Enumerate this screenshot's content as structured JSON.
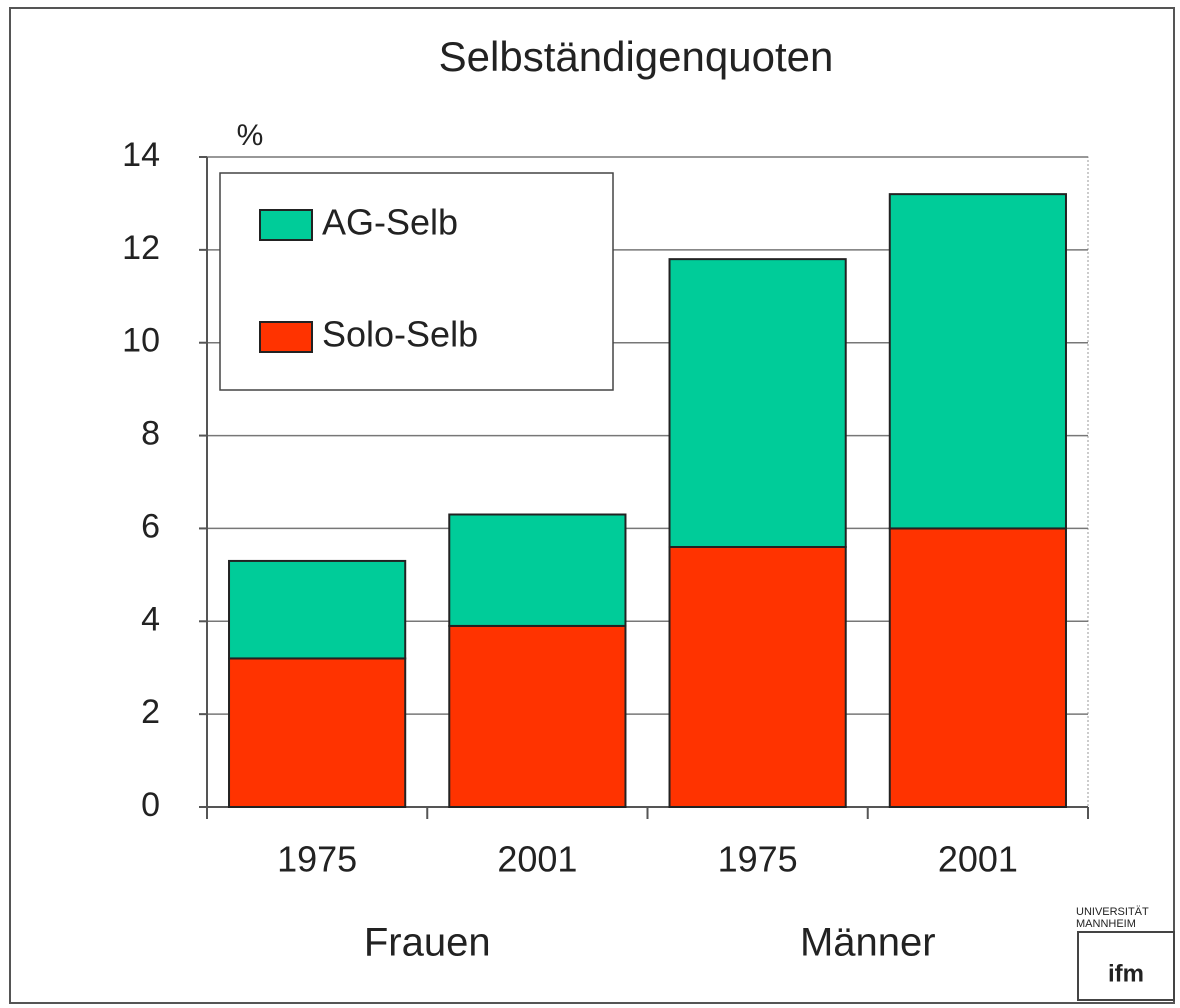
{
  "chart_data": {
    "type": "stacked_bar",
    "title": "Selbständigenquoten",
    "y_unit": "%",
    "categories": [
      "1975",
      "2001",
      "1975",
      "2001"
    ],
    "groups": [
      "Frauen",
      "Männer"
    ],
    "series": [
      {
        "name": "Solo-Selb",
        "color": "#ff3300",
        "values": [
          3.2,
          3.9,
          5.6,
          6.0
        ]
      },
      {
        "name": "AG-Selb",
        "color": "#00cc99",
        "values": [
          2.1,
          2.4,
          6.2,
          7.2
        ]
      }
    ],
    "ylim": [
      0,
      14
    ],
    "yticks": [
      0,
      2,
      4,
      6,
      8,
      10,
      12,
      14
    ],
    "grid": true,
    "legend": "top-left"
  },
  "logo": {
    "lines": [
      "UNIVERSITÄT",
      "MANNHEIM"
    ],
    "mark": "ifm"
  }
}
